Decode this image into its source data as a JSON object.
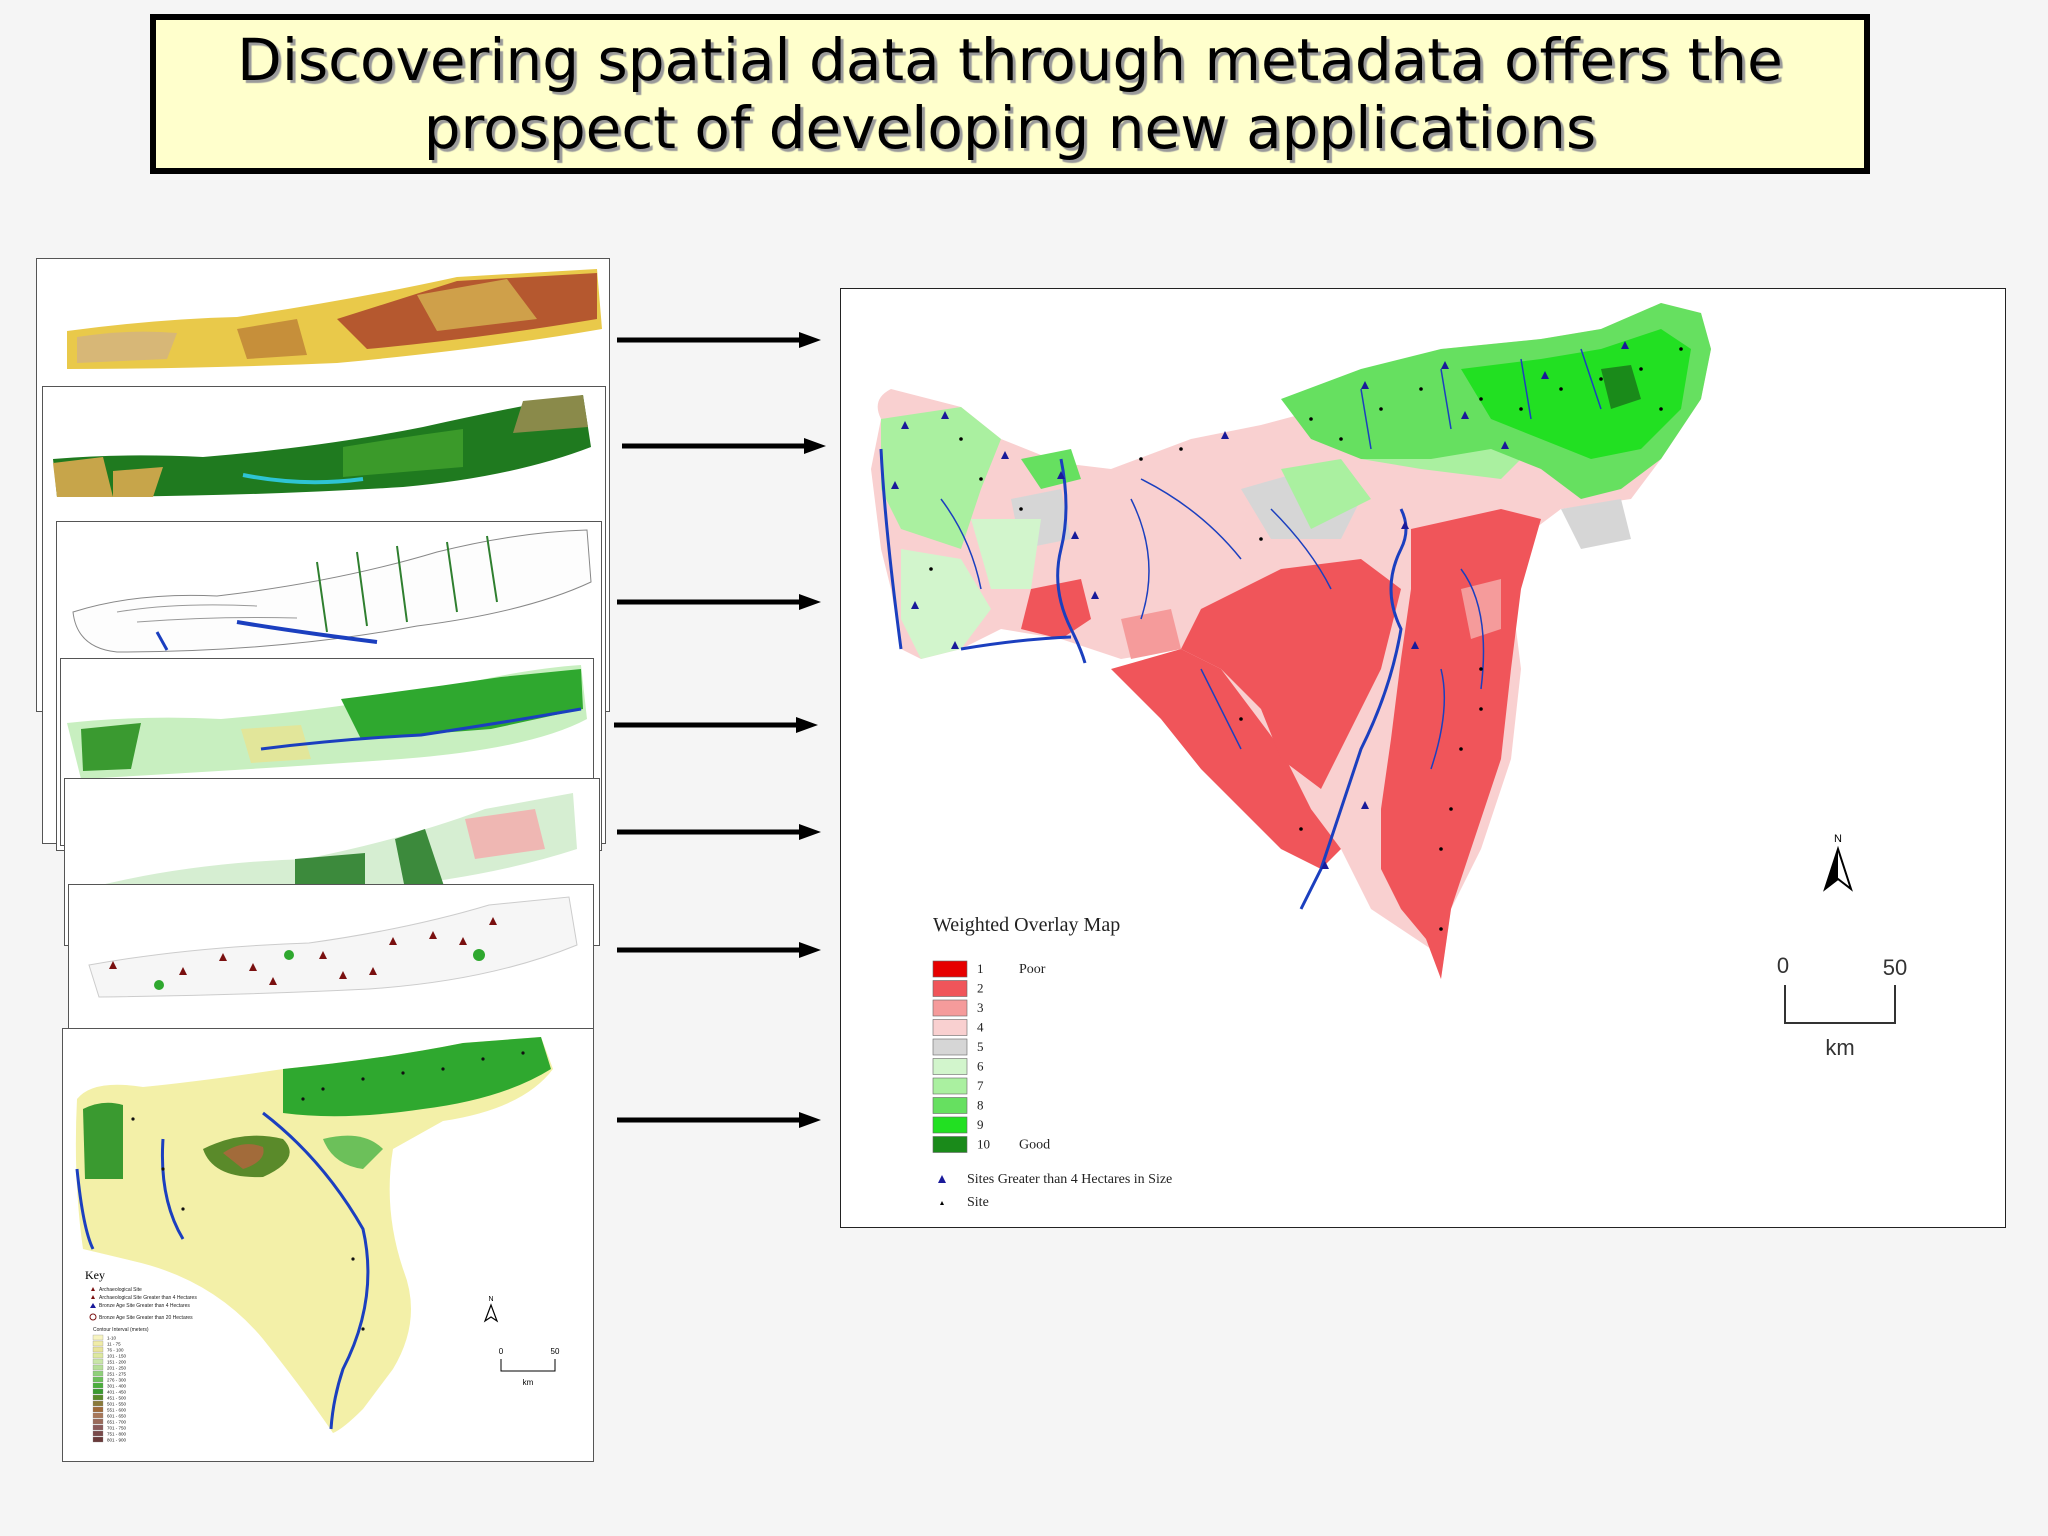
{
  "title": {
    "line1": "Discovering spatial data through metadata offers the",
    "line2": "prospect of developing new applications"
  },
  "input_layers": [
    {
      "name": "geology-layer-map",
      "palette": [
        "#e9c94a",
        "#b5582f",
        "#d7b777",
        "#cfa04a"
      ]
    },
    {
      "name": "land-cover-layer-map",
      "palette": [
        "#1f7a1f",
        "#3b9a2a",
        "#c7a54a",
        "#6b8f2a"
      ]
    },
    {
      "name": "hydrology-layer-map",
      "palette": [
        "#ffffff",
        "#1b3fbf",
        "#2f7f2f"
      ]
    },
    {
      "name": "vegetation-layer-map",
      "palette": [
        "#c8efc0",
        "#2fa82f",
        "#e2e69a",
        "#1b3fbf"
      ]
    },
    {
      "name": "soils-layer-map",
      "palette": [
        "#d6eed2",
        "#3c8a3c",
        "#efb7b3"
      ]
    },
    {
      "name": "archaeological-sites-layer-map",
      "palette": [
        "#ffffff",
        "#7a1010",
        "#2fa82f"
      ]
    },
    {
      "name": "elevation-layer-map",
      "palette": [
        "#f3f0a8",
        "#2fa82f",
        "#a26b3a",
        "#1b3fbf"
      ]
    }
  ],
  "elevation_map": {
    "key_title": "Key",
    "key_items": [
      "Archaeological Site",
      "Archaeological Site Greater than 4 Hectares",
      "Bronze Age Site Greater than 4 Hectares",
      "Bronze Age Site Greater than 20 Hectares"
    ],
    "contour_title": "Contour Interval (meters)",
    "contour_labels": [
      "1-10",
      "11 - 75",
      "76 - 100",
      "101 - 150",
      "151 - 200",
      "201 - 250",
      "251 - 275",
      "276 - 300",
      "301 - 400",
      "401 - 450",
      "451 - 500",
      "501 - 550",
      "551 - 600",
      "601 - 650",
      "651 - 700",
      "701 - 750",
      "751 - 800",
      "801 - 900"
    ],
    "contour_colors": [
      "#f7f4c0",
      "#f0eca8",
      "#e8e49a",
      "#dde8a0",
      "#c9e6a8",
      "#b6df98",
      "#8fd07a",
      "#6cc05a",
      "#4aae3c",
      "#3a9a30",
      "#5a8a2a",
      "#8a7a3a",
      "#a06a3a",
      "#a8785a",
      "#9a6a5a",
      "#8a5a5a",
      "#7a4a4a",
      "#6a3a3a"
    ],
    "north_label": "N",
    "scale_start": "0",
    "scale_end": "50",
    "scale_unit": "km"
  },
  "main_map": {
    "legend_title": "Weighted Overlay Map",
    "classes": [
      {
        "label": "1",
        "desc": "Poor",
        "color": "#e60000"
      },
      {
        "label": "2",
        "desc": "",
        "color": "#f0555a"
      },
      {
        "label": "3",
        "desc": "",
        "color": "#f59b9b"
      },
      {
        "label": "4",
        "desc": "",
        "color": "#f9d0d0"
      },
      {
        "label": "5",
        "desc": "",
        "color": "#d6d6d6"
      },
      {
        "label": "6",
        "desc": "",
        "color": "#d2f5cc"
      },
      {
        "label": "7",
        "desc": "",
        "color": "#aaf0a0"
      },
      {
        "label": "8",
        "desc": "",
        "color": "#66e060"
      },
      {
        "label": "9",
        "desc": "",
        "color": "#22e022"
      },
      {
        "label": "10",
        "desc": "Good",
        "color": "#1a8a1a"
      }
    ],
    "symbol_large": "Sites Greater than 4 Hectares in Size",
    "symbol_small": "Site",
    "north_label": "N",
    "scale_start": "0",
    "scale_end": "50",
    "scale_unit": "km"
  },
  "colors": {
    "title_bg": "#ffffcc",
    "river": "#1b3fbf",
    "site_large": "#1a1a9a",
    "site_small": "#000000"
  }
}
